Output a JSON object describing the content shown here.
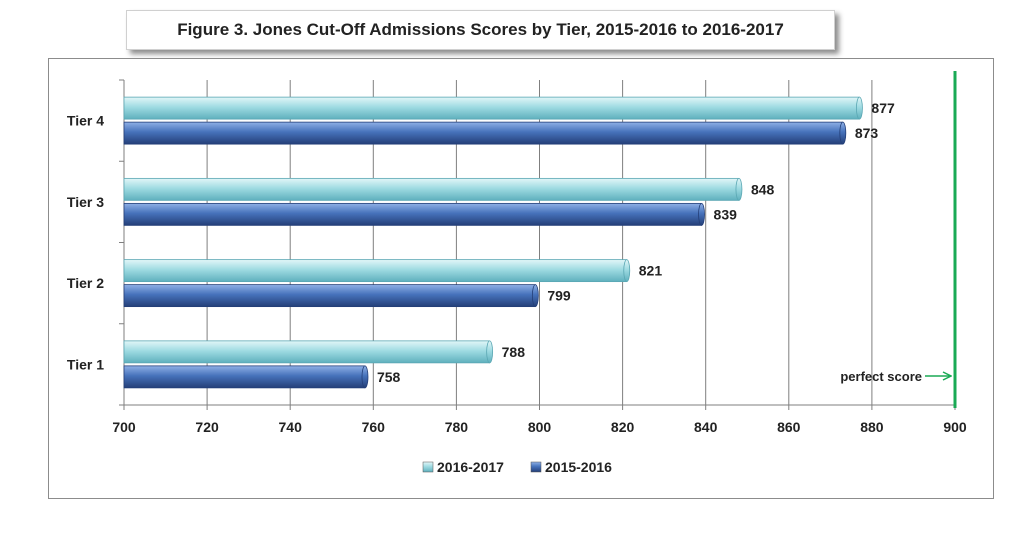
{
  "chart_data": {
    "type": "bar",
    "orientation": "horizontal",
    "title": "Figure 3. Jones Cut-Off Admissions Scores by Tier, 2015-2016 to 2016-2017",
    "categories": [
      "Tier 4",
      "Tier 3",
      "Tier 2",
      "Tier 1"
    ],
    "series": [
      {
        "name": "2016-2017",
        "values": [
          877,
          848,
          821,
          788
        ],
        "color": "#8fd4dc"
      },
      {
        "name": "2015-2016",
        "values": [
          873,
          839,
          799,
          758
        ],
        "color": "#3c66ad"
      }
    ],
    "x_ticks": [
      "700",
      "720",
      "740",
      "760",
      "780",
      "800",
      "820",
      "840",
      "860",
      "880",
      "900"
    ],
    "xlim": [
      700,
      900
    ],
    "grid": "vertical",
    "legend_position": "bottom",
    "annotation": {
      "label": "perfect score",
      "value": 900,
      "color": "#1aaa55"
    }
  }
}
